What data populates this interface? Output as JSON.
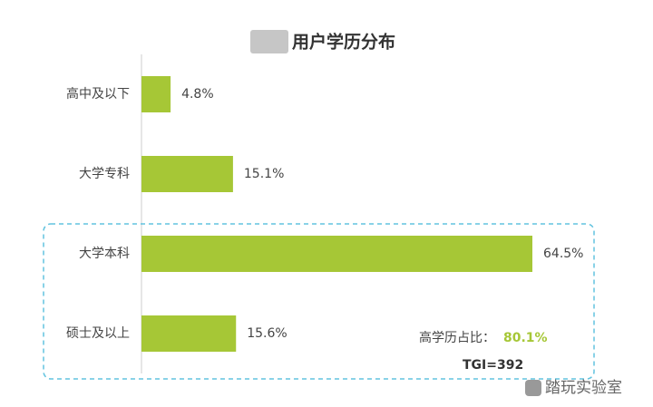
{
  "chart_data": {
    "type": "bar",
    "orientation": "horizontal",
    "title": "用户学历分布",
    "categories": [
      "高中及以下",
      "大学专科",
      "大学本科",
      "硕士及以上"
    ],
    "values": [
      4.8,
      15.1,
      64.5,
      15.6
    ],
    "value_labels": [
      "4.8%",
      "15.1%",
      "64.5%",
      "15.6%"
    ],
    "color": "#a6c736",
    "annotations": [
      "高学历占比：",
      "80.1%",
      "TGI=392"
    ],
    "watermark": "踏玩实验室"
  }
}
